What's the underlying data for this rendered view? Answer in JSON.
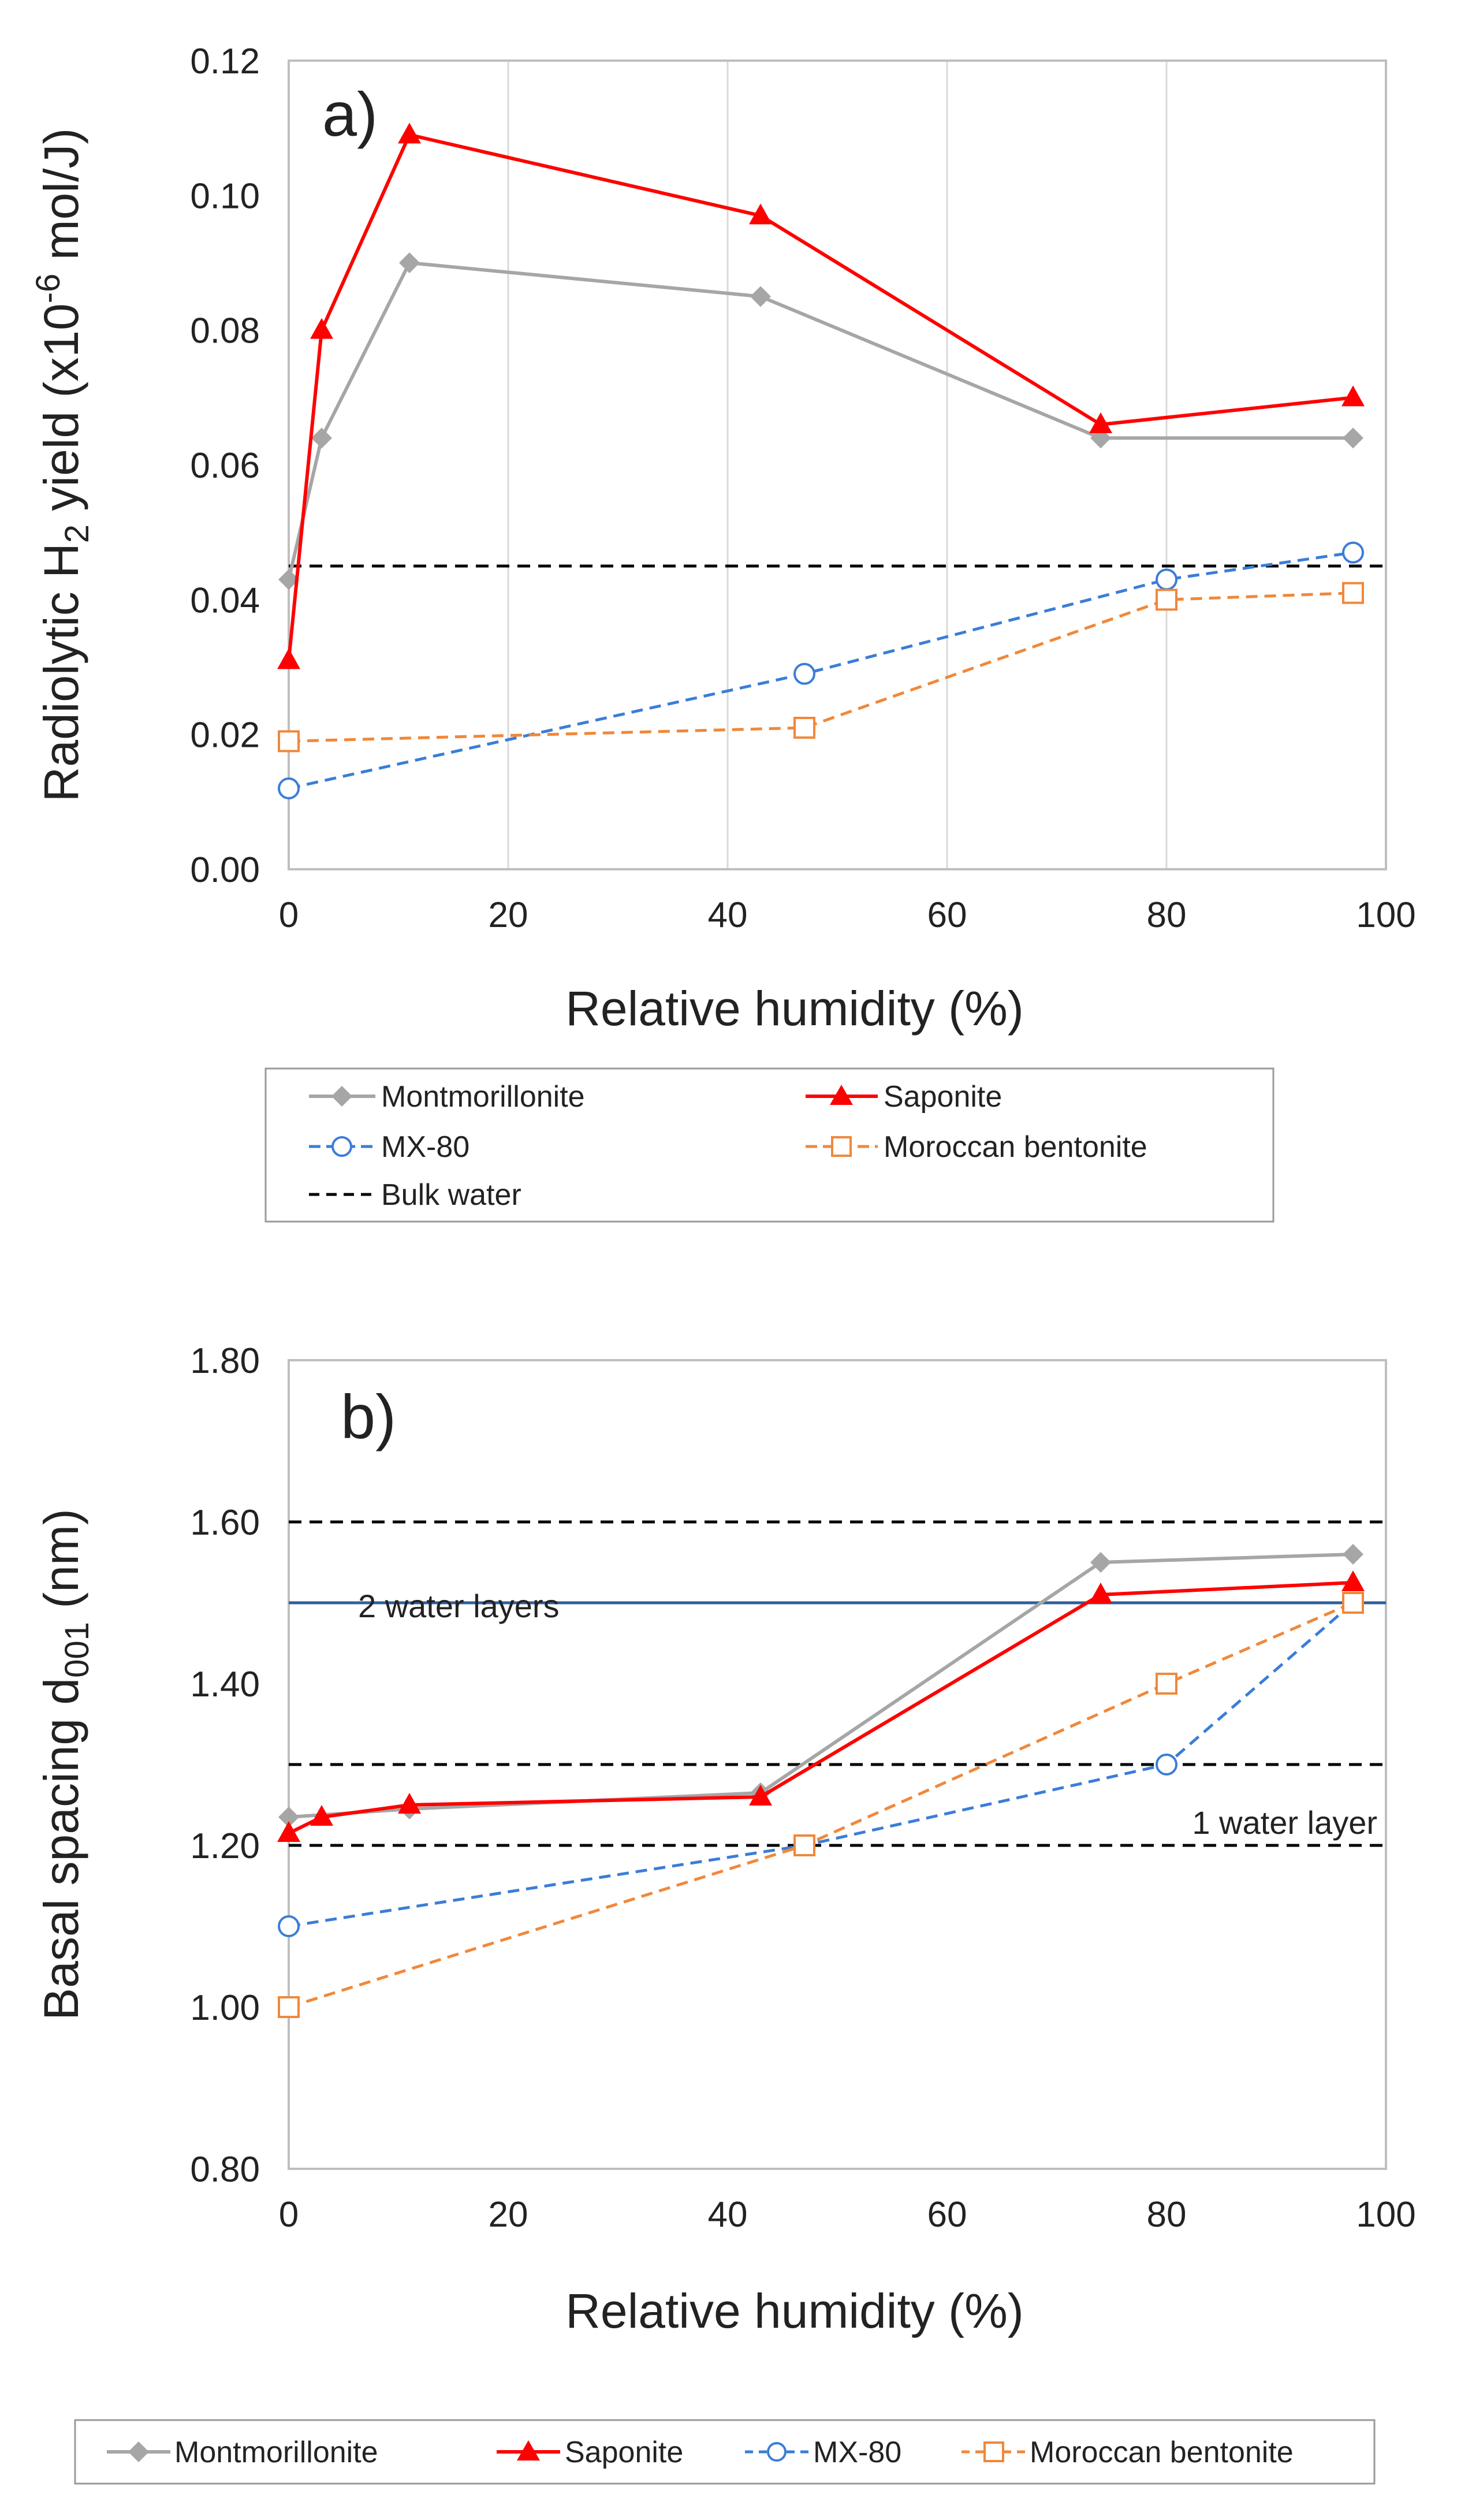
{
  "chart_data": [
    {
      "type": "line",
      "panel": "a)",
      "xlabel": "Relative humidity (%)",
      "ylabel": "Radiolytic H2 yield (x10-6 mol/J)",
      "ylabel_parts": {
        "pre": "Radiolytic H",
        "sub": "2",
        "mid": " yield (x10",
        "sup": "-6",
        "post": " mol/J)"
      },
      "xlim": [
        0,
        100
      ],
      "ylim": [
        0,
        0.12
      ],
      "xticks": [
        "0",
        "20",
        "40",
        "60",
        "80",
        "100"
      ],
      "yticks": [
        "0.00",
        "0.02",
        "0.04",
        "0.06",
        "0.08",
        "0.10",
        "0.12"
      ],
      "grid": "vertical",
      "legend_position": "below",
      "series": [
        {
          "name": "Montmorillonite",
          "color": "#a6a6a6",
          "marker": "diamond",
          "dash": "solid",
          "x": [
            0,
            3,
            11,
            43,
            74,
            97
          ],
          "y": [
            0.043,
            0.064,
            0.09,
            0.085,
            0.064,
            0.064
          ]
        },
        {
          "name": "Saponite",
          "color": "#ff0000",
          "marker": "triangle",
          "dash": "solid",
          "x": [
            0,
            3,
            11,
            43,
            74,
            97
          ],
          "y": [
            0.031,
            0.08,
            0.109,
            0.097,
            0.066,
            0.07
          ]
        },
        {
          "name": "MX-80",
          "color": "#3b7dd8",
          "marker": "circle",
          "dash": "dashed",
          "x": [
            0,
            47,
            80,
            97
          ],
          "y": [
            0.012,
            0.029,
            0.043,
            0.047
          ]
        },
        {
          "name": "Moroccan bentonite",
          "color": "#f0883a",
          "marker": "square",
          "dash": "dashed",
          "x": [
            0,
            47,
            80,
            97
          ],
          "y": [
            0.019,
            0.021,
            0.04,
            0.041
          ]
        }
      ],
      "reference_lines": [
        {
          "name": "Bulk water",
          "y": 0.045,
          "color": "#000000",
          "dash": "dashed"
        }
      ]
    },
    {
      "type": "line",
      "panel": "b)",
      "xlabel": "Relative humidity (%)",
      "ylabel": "Basal spacing d001 (nm)",
      "ylabel_parts": {
        "pre": "Basal spacing d",
        "sub": "001",
        "post": " (nm)"
      },
      "xlim": [
        0,
        100
      ],
      "ylim": [
        0.8,
        1.8
      ],
      "xticks": [
        "0",
        "20",
        "40",
        "60",
        "80",
        "100"
      ],
      "yticks": [
        "0.80",
        "1.00",
        "1.20",
        "1.40",
        "1.60",
        "1.80"
      ],
      "grid": "none",
      "legend_position": "below",
      "series": [
        {
          "name": "Montmorillonite",
          "color": "#a6a6a6",
          "marker": "diamond",
          "dash": "solid",
          "x": [
            0,
            11,
            43,
            74,
            97
          ],
          "y": [
            1.235,
            1.245,
            1.265,
            1.55,
            1.56
          ]
        },
        {
          "name": "Saponite",
          "color": "#ff0000",
          "marker": "triangle",
          "dash": "solid",
          "x": [
            0,
            3,
            11,
            43,
            74,
            97
          ],
          "y": [
            1.215,
            1.235,
            1.25,
            1.26,
            1.51,
            1.525
          ]
        },
        {
          "name": "MX-80",
          "color": "#3b7dd8",
          "marker": "circle",
          "dash": "dashed",
          "x": [
            0,
            47,
            80,
            97
          ],
          "y": [
            1.1,
            1.2,
            1.3,
            1.5
          ]
        },
        {
          "name": "Moroccan bentonite",
          "color": "#f0883a",
          "marker": "square",
          "dash": "dashed",
          "x": [
            0,
            47,
            80,
            97
          ],
          "y": [
            1.0,
            1.2,
            1.4,
            1.5
          ]
        }
      ],
      "reference_lines": [
        {
          "y": 1.6,
          "color": "#000000",
          "dash": "dashed"
        },
        {
          "y": 1.5,
          "color": "#2e5f9e",
          "dash": "solid"
        },
        {
          "y": 1.3,
          "color": "#000000",
          "dash": "dashed"
        },
        {
          "y": 1.2,
          "color": "#000000",
          "dash": "dashed"
        }
      ],
      "annotations": [
        "2 water layers",
        "1 water layer"
      ]
    }
  ],
  "legend_a": [
    "Montmorillonite",
    "Saponite",
    "MX-80",
    "Moroccan bentonite",
    "Bulk water"
  ],
  "legend_b": [
    "Montmorillonite",
    "Saponite",
    "MX-80",
    "Moroccan bentonite"
  ]
}
